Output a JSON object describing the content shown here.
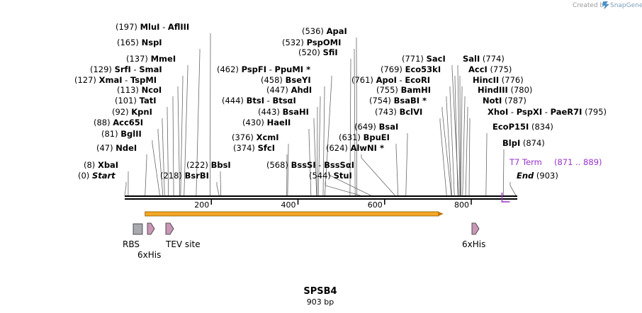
{
  "credit": {
    "text": "Created by",
    "brand": "SnapGene"
  },
  "title": "SPSB4",
  "length_label": "903 bp",
  "length": 903,
  "ticks": [
    {
      "value": 200,
      "label": "200"
    },
    {
      "value": 400,
      "label": "400"
    },
    {
      "value": 600,
      "label": "600"
    },
    {
      "value": 800,
      "label": "800"
    }
  ],
  "sites": [
    {
      "pos": "(197)",
      "names": [
        "MluI",
        "AflIII"
      ],
      "cut": 197
    },
    {
      "pos": "(165)",
      "names": [
        "NspI"
      ],
      "cut": 165
    },
    {
      "pos": "(137)",
      "names": [
        "MmeI"
      ],
      "cut": 137
    },
    {
      "pos": "(129)",
      "names": [
        "SrfI",
        "SmaI"
      ],
      "cut": 129
    },
    {
      "pos": "(127)",
      "names": [
        "XmaI",
        "TspMI"
      ],
      "cut": 127
    },
    {
      "pos": "(113)",
      "names": [
        "NcoI"
      ],
      "cut": 113
    },
    {
      "pos": "(101)",
      "names": [
        "TatI"
      ],
      "cut": 101
    },
    {
      "pos": "(92)",
      "names": [
        "KpnI"
      ],
      "cut": 92
    },
    {
      "pos": "(88)",
      "names": [
        "Acc65I"
      ],
      "cut": 88
    },
    {
      "pos": "(81)",
      "names": [
        "BglII"
      ],
      "cut": 81
    },
    {
      "pos": "(47)",
      "names": [
        "NdeI"
      ],
      "cut": 47
    },
    {
      "pos": "(8)",
      "names": [
        "XbaI"
      ],
      "cut": 8
    },
    {
      "pos": "(0)",
      "names": [
        "Start"
      ],
      "cut": 0,
      "italic": true
    },
    {
      "pos": "(222)",
      "names": [
        "BbsI"
      ],
      "cut": 222
    },
    {
      "pos": "(218)",
      "names": [
        "BsrBI"
      ],
      "cut": 218
    },
    {
      "pos": "(536)",
      "names": [
        "ApaI"
      ],
      "cut": 536
    },
    {
      "pos": "(532)",
      "names": [
        "PspOMI"
      ],
      "cut": 532
    },
    {
      "pos": "(520)",
      "names": [
        "SfiI"
      ],
      "cut": 520
    },
    {
      "pos": "(462)",
      "names": [
        "PspFI",
        "PpuMI *"
      ],
      "cut": 462
    },
    {
      "pos": "(458)",
      "names": [
        "BseYI"
      ],
      "cut": 458
    },
    {
      "pos": "(447)",
      "names": [
        "AhdI"
      ],
      "cut": 447
    },
    {
      "pos": "(444)",
      "names": [
        "BtsI",
        "BtsαI"
      ],
      "cut": 444
    },
    {
      "pos": "(443)",
      "names": [
        "BsaHI"
      ],
      "cut": 443
    },
    {
      "pos": "(430)",
      "names": [
        "HaeII"
      ],
      "cut": 430
    },
    {
      "pos": "(376)",
      "names": [
        "XcmI"
      ],
      "cut": 376
    },
    {
      "pos": "(374)",
      "names": [
        "SfcI"
      ],
      "cut": 374
    },
    {
      "pos": "(568)",
      "names": [
        "BssSI",
        "BssSαI"
      ],
      "cut": 568
    },
    {
      "pos": "(544)",
      "names": [
        "StuI"
      ],
      "cut": 544
    },
    {
      "pos": "(649)",
      "names": [
        "BsaI"
      ],
      "cut": 649
    },
    {
      "pos": "(631)",
      "names": [
        "BpuEI"
      ],
      "cut": 631
    },
    {
      "pos": "(624)",
      "names": [
        "AlwNI *"
      ],
      "cut": 624
    },
    {
      "pos": "(771)",
      "names": [
        "SacI"
      ],
      "cut": 771
    },
    {
      "pos": "(774)",
      "names": [
        "SalI"
      ],
      "cut": 774,
      "pos_after": true
    },
    {
      "pos": "(769)",
      "names": [
        "Eco53kI"
      ],
      "cut": 769
    },
    {
      "pos": "(775)",
      "names": [
        "AccI"
      ],
      "cut": 775,
      "pos_after": true
    },
    {
      "pos": "(761)",
      "names": [
        "ApoI",
        "EcoRI"
      ],
      "cut": 761
    },
    {
      "pos": "(776)",
      "names": [
        "HincII"
      ],
      "cut": 776,
      "pos_after": true
    },
    {
      "pos": "(755)",
      "names": [
        "BamHI"
      ],
      "cut": 755
    },
    {
      "pos": "(780)",
      "names": [
        "HindIII"
      ],
      "cut": 780,
      "pos_after": true
    },
    {
      "pos": "(754)",
      "names": [
        "BsaBI *"
      ],
      "cut": 754
    },
    {
      "pos": "(787)",
      "names": [
        "NotI"
      ],
      "cut": 787,
      "pos_after": true
    },
    {
      "pos": "(743)",
      "names": [
        "BclVI"
      ],
      "cut": 743
    },
    {
      "pos": "(795)",
      "names": [
        "XhoI",
        "PspXI",
        "PaeR7I"
      ],
      "cut": 795,
      "pos_after": true
    },
    {
      "pos": "(834)",
      "names": [
        "EcoP15I"
      ],
      "cut": 834,
      "pos_after": true
    },
    {
      "pos": "(874)",
      "names": [
        "BlpI"
      ],
      "cut": 874,
      "pos_after": true
    },
    {
      "pos": "(903)",
      "names": [
        "End"
      ],
      "cut": 903,
      "pos_after": true,
      "italic": true
    }
  ],
  "terminator": {
    "name": "T7 Term",
    "range": "(871 .. 889)",
    "color": "#9933cc"
  },
  "orf": {
    "start": 47,
    "end": 736,
    "color": "#f5a623"
  },
  "features": [
    {
      "name": "RBS",
      "color": "#a8aab0"
    },
    {
      "name": "6xHis",
      "color": "#c996b6"
    },
    {
      "name": "TEV site",
      "color": "#c996b6"
    },
    {
      "name": "6xHis",
      "color": "#c996b6"
    }
  ]
}
